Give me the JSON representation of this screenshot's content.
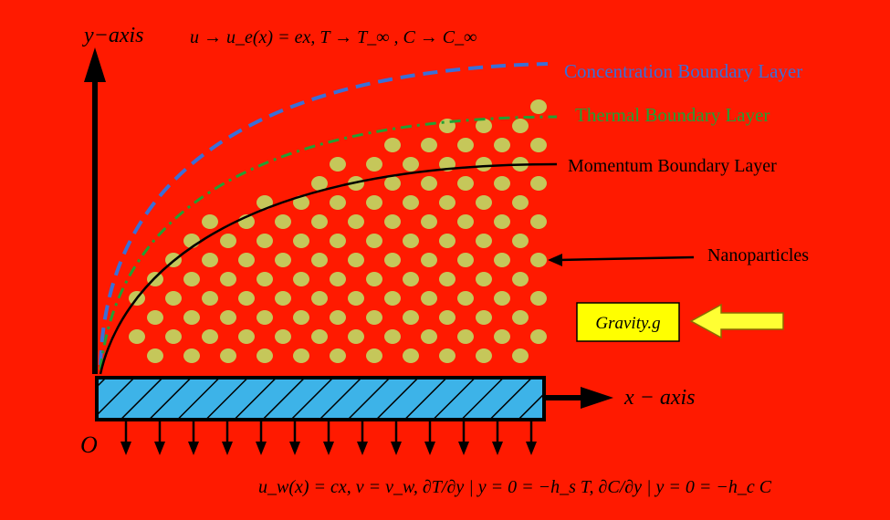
{
  "colors": {
    "background": "#ff1a00",
    "concentration": "#3a6fd8",
    "thermal": "#22a034",
    "momentum": "#000000",
    "particle": "#c5c75a",
    "plate": "#3db3e8",
    "gravity_box": "#ffff00",
    "gravity_arrow": "#ffff33"
  },
  "axes": {
    "y_label": "y−axis",
    "x_label": "x − axis",
    "origin": "O"
  },
  "top_conditions": "u → u_e(x) = ex, T → T_∞ , C → C_∞",
  "boundary_layers": {
    "concentration": "Concentration Boundary Layer",
    "thermal": "Thermal Boundary Layer",
    "momentum": "Momentum Boundary Layer"
  },
  "nanoparticles_label": "Nanoparticles",
  "gravity_label": "Gravity.g",
  "bottom_conditions": "u_w(x) = cx,  v = v_w, ∂T/∂y | y = 0 = −h_s T,  ∂C/∂y | y = 0 = −h_c C",
  "icons": {
    "particle": "filled-ellipse",
    "arrow": "arrow-icon"
  }
}
